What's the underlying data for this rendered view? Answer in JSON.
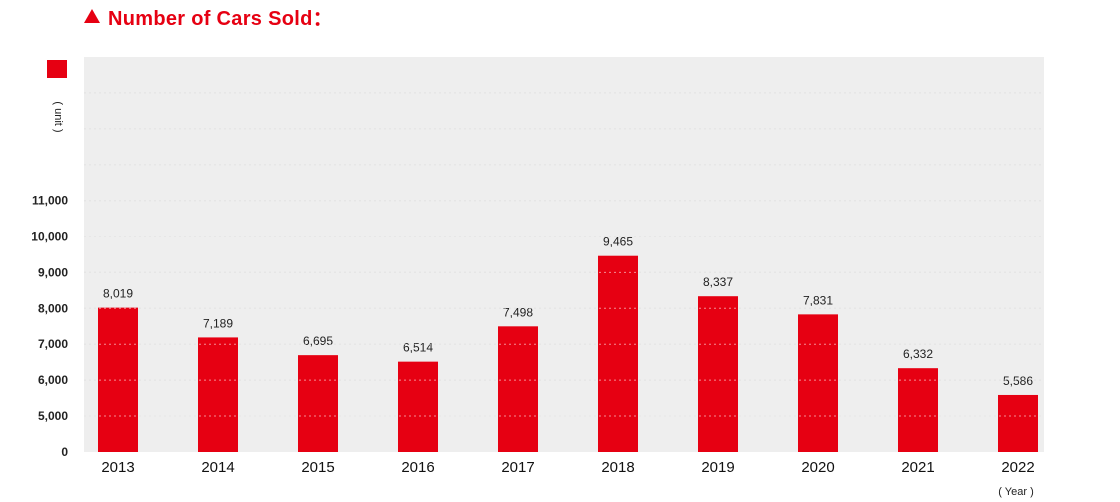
{
  "header": {
    "title": "Number of Cars Sold："
  },
  "chart_data": {
    "type": "bar",
    "title": "Number of Cars Sold：",
    "ylabel": "( unit )",
    "xlabel": "( Year )",
    "categories": [
      "2013",
      "2014",
      "2015",
      "2016",
      "2017",
      "2018",
      "2019",
      "2020",
      "2021",
      "2022"
    ],
    "values": [
      8019,
      7189,
      6695,
      6514,
      7498,
      9465,
      8337,
      7831,
      6332,
      5586
    ],
    "value_labels": [
      "8,019",
      "7,189",
      "6,695",
      "6,514",
      "7,498",
      "9,465",
      "8,337",
      "7,831",
      "6,332",
      "5,586"
    ],
    "y_ticks": [
      "0",
      "5,000",
      "6,000",
      "7,000",
      "8,000",
      "9,000",
      "10,000",
      "11,000"
    ],
    "y_axis_break": true,
    "grid": true,
    "bar_color": "#e60012",
    "plot_background": "#eeeeee"
  }
}
